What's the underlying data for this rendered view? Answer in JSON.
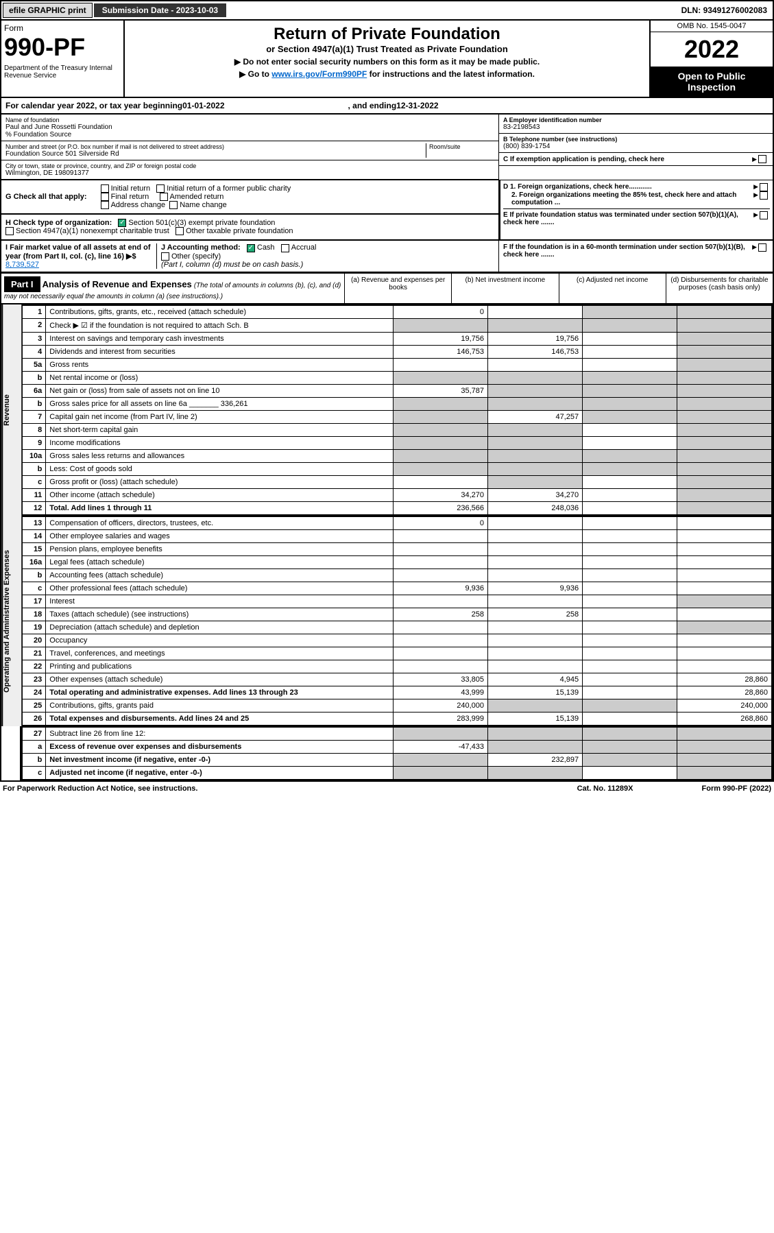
{
  "topbar": {
    "efile": "efile GRAPHIC print",
    "subdate_label": "Submission Date - ",
    "subdate": "2023-10-03",
    "dln_label": "DLN: ",
    "dln": "93491276002083"
  },
  "header": {
    "form_label": "Form",
    "form_num": "990-PF",
    "dept": "Department of the Treasury\nInternal Revenue Service",
    "title": "Return of Private Foundation",
    "subtitle": "or Section 4947(a)(1) Trust Treated as Private Foundation",
    "note1": "▶ Do not enter social security numbers on this form as it may be made public.",
    "note2_pre": "▶ Go to ",
    "note2_link": "www.irs.gov/Form990PF",
    "note2_post": " for instructions and the latest information.",
    "omb": "OMB No. 1545-0047",
    "year": "2022",
    "open": "Open to Public Inspection"
  },
  "cal": {
    "pre": "For calendar year 2022, or tax year beginning ",
    "begin": "01-01-2022",
    "mid": ", and ending ",
    "end": "12-31-2022"
  },
  "info": {
    "name_lbl": "Name of foundation",
    "name": "Paul and June Rossetti Foundation",
    "pct": "% Foundation Source",
    "addr_lbl": "Number and street (or P.O. box number if mail is not delivered to street address)",
    "addr": "Foundation Source 501 Silverside Rd",
    "room_lbl": "Room/suite",
    "city_lbl": "City or town, state or province, country, and ZIP or foreign postal code",
    "city": "Wilmington, DE  198091377",
    "a_lbl": "A Employer identification number",
    "a_val": "83-2198543",
    "b_lbl": "B Telephone number (see instructions)",
    "b_val": "(800) 839-1754",
    "c_lbl": "C If exemption application is pending, check here",
    "d1": "D 1. Foreign organizations, check here............",
    "d2": "2. Foreign organizations meeting the 85% test, check here and attach computation ...",
    "e": "E  If private foundation status was terminated under section 507(b)(1)(A), check here .......",
    "f": "F  If the foundation is in a 60-month termination under section 507(b)(1)(B), check here .......",
    "g_lbl": "G Check all that apply:",
    "g_opts": [
      "Initial return",
      "Final return",
      "Address change",
      "Initial return of a former public charity",
      "Amended return",
      "Name change"
    ],
    "h_lbl": "H Check type of organization:",
    "h1": "Section 501(c)(3) exempt private foundation",
    "h2": "Section 4947(a)(1) nonexempt charitable trust",
    "h3": "Other taxable private foundation",
    "i_lbl": "I Fair market value of all assets at end of year (from Part II, col. (c), line 16) ▶$ ",
    "i_val": "8,739,527",
    "j_lbl": "J Accounting method:",
    "j_cash": "Cash",
    "j_accrual": "Accrual",
    "j_other": "Other (specify)",
    "j_note": "(Part I, column (d) must be on cash basis.)"
  },
  "part1": {
    "label": "Part I",
    "title": "Analysis of Revenue and Expenses",
    "note": "(The total of amounts in columns (b), (c), and (d) may not necessarily equal the amounts in column (a) (see instructions).)",
    "col_a": "(a) Revenue and expenses per books",
    "col_b": "(b) Net investment income",
    "col_c": "(c) Adjusted net income",
    "col_d": "(d) Disbursements for charitable purposes (cash basis only)"
  },
  "sections": {
    "revenue": "Revenue",
    "expenses": "Operating and Administrative Expenses"
  },
  "rows": [
    {
      "n": "1",
      "d": "Contributions, gifts, grants, etc., received (attach schedule)",
      "a": "0",
      "b": "",
      "c": "g",
      "dd": "g"
    },
    {
      "n": "2",
      "d": "Check ▶ ☑ if the foundation is not required to attach Sch. B",
      "a": "g",
      "b": "g",
      "c": "g",
      "dd": "g"
    },
    {
      "n": "3",
      "d": "Interest on savings and temporary cash investments",
      "a": "19,756",
      "b": "19,756",
      "c": "",
      "dd": "g"
    },
    {
      "n": "4",
      "d": "Dividends and interest from securities",
      "a": "146,753",
      "b": "146,753",
      "c": "",
      "dd": "g"
    },
    {
      "n": "5a",
      "d": "Gross rents",
      "a": "",
      "b": "",
      "c": "",
      "dd": "g"
    },
    {
      "n": "b",
      "d": "Net rental income or (loss)",
      "a": "g",
      "b": "g",
      "c": "g",
      "dd": "g"
    },
    {
      "n": "6a",
      "d": "Net gain or (loss) from sale of assets not on line 10",
      "a": "35,787",
      "b": "g",
      "c": "g",
      "dd": "g"
    },
    {
      "n": "b",
      "d": "Gross sales price for all assets on line 6a _______ 336,261",
      "a": "g",
      "b": "g",
      "c": "g",
      "dd": "g"
    },
    {
      "n": "7",
      "d": "Capital gain net income (from Part IV, line 2)",
      "a": "g",
      "b": "47,257",
      "c": "g",
      "dd": "g"
    },
    {
      "n": "8",
      "d": "Net short-term capital gain",
      "a": "g",
      "b": "g",
      "c": "",
      "dd": "g"
    },
    {
      "n": "9",
      "d": "Income modifications",
      "a": "g",
      "b": "g",
      "c": "",
      "dd": "g"
    },
    {
      "n": "10a",
      "d": "Gross sales less returns and allowances",
      "a": "g",
      "b": "g",
      "c": "g",
      "dd": "g"
    },
    {
      "n": "b",
      "d": "Less: Cost of goods sold",
      "a": "g",
      "b": "g",
      "c": "g",
      "dd": "g"
    },
    {
      "n": "c",
      "d": "Gross profit or (loss) (attach schedule)",
      "a": "",
      "b": "g",
      "c": "",
      "dd": "g"
    },
    {
      "n": "11",
      "d": "Other income (attach schedule)",
      "a": "34,270",
      "b": "34,270",
      "c": "",
      "dd": "g"
    },
    {
      "n": "12",
      "d": "Total. Add lines 1 through 11",
      "a": "236,566",
      "b": "248,036",
      "c": "",
      "dd": "g",
      "bold": true
    }
  ],
  "exp_rows": [
    {
      "n": "13",
      "d": "Compensation of officers, directors, trustees, etc.",
      "a": "0",
      "b": "",
      "c": "",
      "dd": ""
    },
    {
      "n": "14",
      "d": "Other employee salaries and wages",
      "a": "",
      "b": "",
      "c": "",
      "dd": ""
    },
    {
      "n": "15",
      "d": "Pension plans, employee benefits",
      "a": "",
      "b": "",
      "c": "",
      "dd": ""
    },
    {
      "n": "16a",
      "d": "Legal fees (attach schedule)",
      "a": "",
      "b": "",
      "c": "",
      "dd": ""
    },
    {
      "n": "b",
      "d": "Accounting fees (attach schedule)",
      "a": "",
      "b": "",
      "c": "",
      "dd": ""
    },
    {
      "n": "c",
      "d": "Other professional fees (attach schedule)",
      "a": "9,936",
      "b": "9,936",
      "c": "",
      "dd": ""
    },
    {
      "n": "17",
      "d": "Interest",
      "a": "",
      "b": "",
      "c": "",
      "dd": "g"
    },
    {
      "n": "18",
      "d": "Taxes (attach schedule) (see instructions)",
      "a": "258",
      "b": "258",
      "c": "",
      "dd": ""
    },
    {
      "n": "19",
      "d": "Depreciation (attach schedule) and depletion",
      "a": "",
      "b": "",
      "c": "",
      "dd": "g"
    },
    {
      "n": "20",
      "d": "Occupancy",
      "a": "",
      "b": "",
      "c": "",
      "dd": ""
    },
    {
      "n": "21",
      "d": "Travel, conferences, and meetings",
      "a": "",
      "b": "",
      "c": "",
      "dd": ""
    },
    {
      "n": "22",
      "d": "Printing and publications",
      "a": "",
      "b": "",
      "c": "",
      "dd": ""
    },
    {
      "n": "23",
      "d": "Other expenses (attach schedule)",
      "a": "33,805",
      "b": "4,945",
      "c": "",
      "dd": "28,860"
    },
    {
      "n": "24",
      "d": "Total operating and administrative expenses. Add lines 13 through 23",
      "a": "43,999",
      "b": "15,139",
      "c": "",
      "dd": "28,860",
      "bold": true
    },
    {
      "n": "25",
      "d": "Contributions, gifts, grants paid",
      "a": "240,000",
      "b": "g",
      "c": "g",
      "dd": "240,000"
    },
    {
      "n": "26",
      "d": "Total expenses and disbursements. Add lines 24 and 25",
      "a": "283,999",
      "b": "15,139",
      "c": "",
      "dd": "268,860",
      "bold": true
    }
  ],
  "bottom_rows": [
    {
      "n": "27",
      "d": "Subtract line 26 from line 12:",
      "a": "g",
      "b": "g",
      "c": "g",
      "dd": "g"
    },
    {
      "n": "a",
      "d": "Excess of revenue over expenses and disbursements",
      "a": "-47,433",
      "b": "g",
      "c": "g",
      "dd": "g",
      "bold": true
    },
    {
      "n": "b",
      "d": "Net investment income (if negative, enter -0-)",
      "a": "g",
      "b": "232,897",
      "c": "g",
      "dd": "g",
      "bold": true
    },
    {
      "n": "c",
      "d": "Adjusted net income (if negative, enter -0-)",
      "a": "g",
      "b": "g",
      "c": "",
      "dd": "g",
      "bold": true
    }
  ],
  "footer": {
    "left": "For Paperwork Reduction Act Notice, see instructions.",
    "mid": "Cat. No. 11289X",
    "right": "Form 990-PF (2022)"
  }
}
